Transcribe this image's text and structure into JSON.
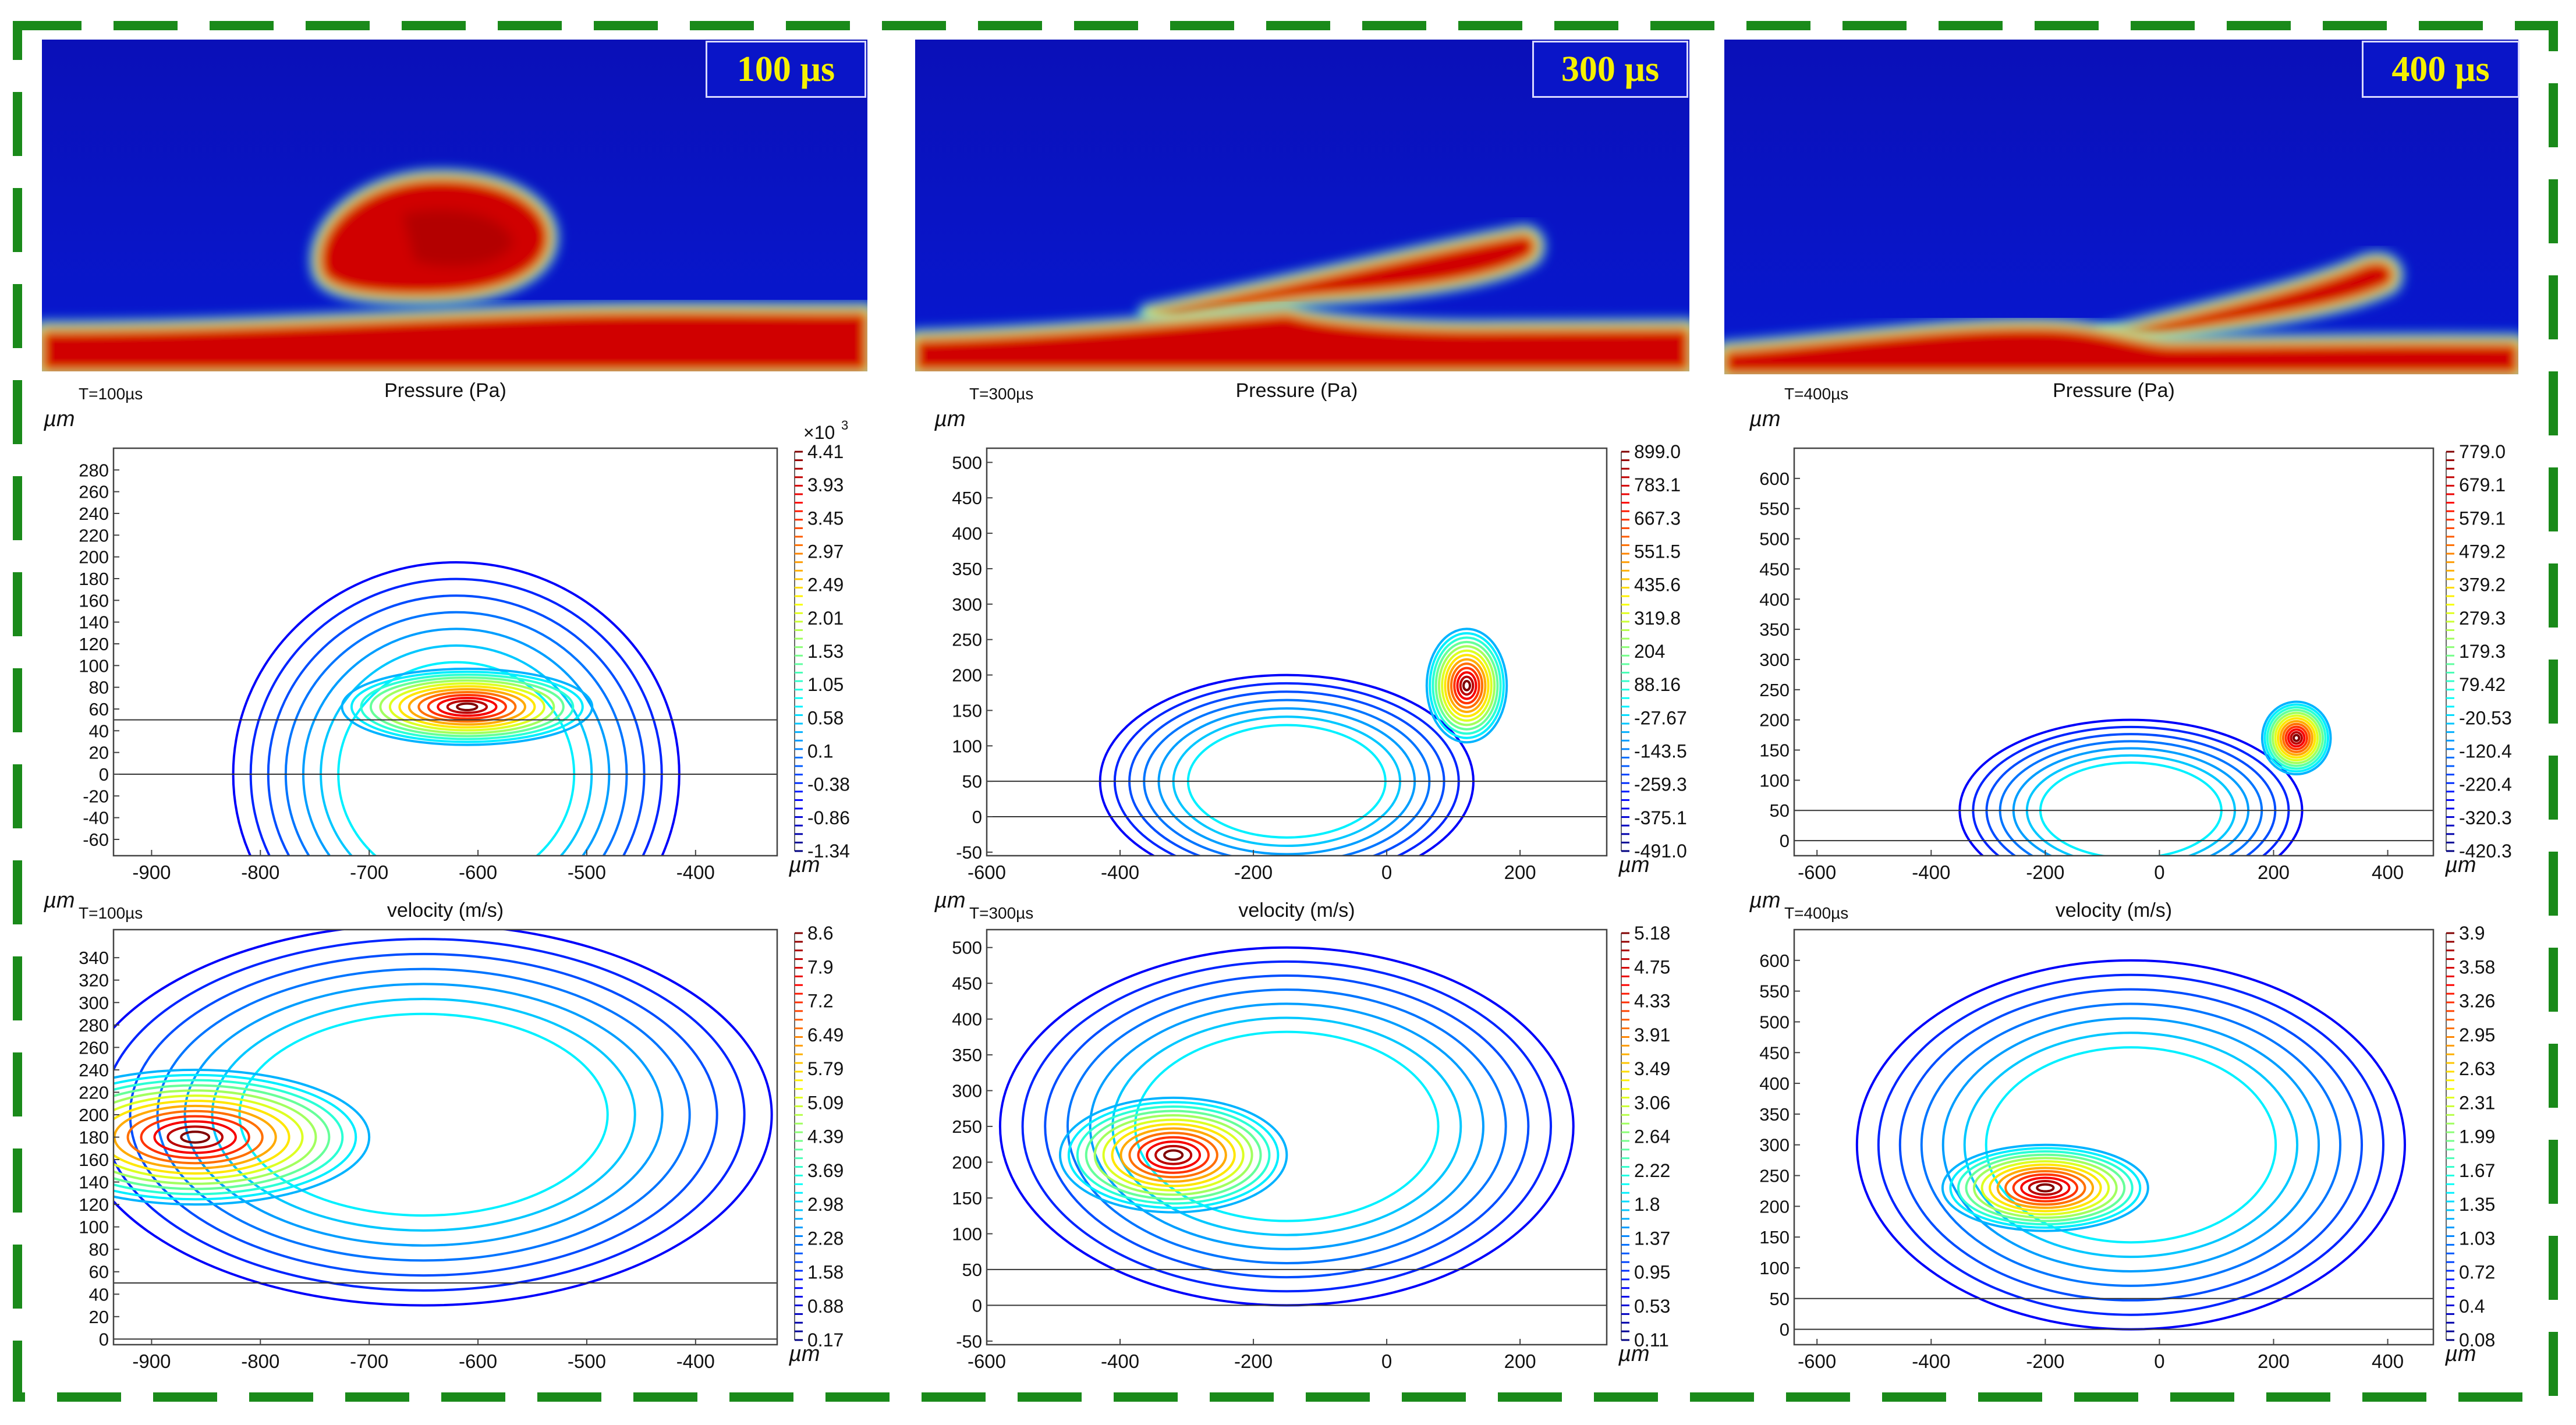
{
  "colors": {
    "frame": "#1a8a1a",
    "field_bg": "#0a14c0",
    "field_hot": "#c80000"
  },
  "snapshots": [
    {
      "label": "100 µs"
    },
    {
      "label": "300 µs"
    },
    {
      "label": "400 µs"
    }
  ],
  "chart_data": [
    {
      "type": "contour",
      "kind": "pressure",
      "col": 0,
      "time_label": "T=100µs",
      "title": "Pressure (Pa)",
      "unit": "µm",
      "xticks": [
        -900,
        -800,
        -700,
        -600,
        -500,
        -400
      ],
      "xlim": [
        -935,
        -325
      ],
      "yticks": [
        -60,
        -40,
        -20,
        0,
        20,
        40,
        60,
        80,
        100,
        120,
        140,
        160,
        180,
        200,
        220,
        240,
        260,
        280
      ],
      "ylim": [
        -75,
        300
      ],
      "colorbar": {
        "exponent": "×10",
        "exponent_power": "3",
        "labels": [
          "4.41",
          "3.93",
          "3.45",
          "2.97",
          "2.49",
          "2.01",
          "1.53",
          "1.05",
          "0.58",
          "0.1",
          "-0.38",
          "-0.86",
          "-1.34"
        ]
      },
      "contours": {
        "center": [
          -610,
          62
        ],
        "spread": [
          115,
          35
        ],
        "dome": [
          -620,
          0,
          205,
          195
        ],
        "level": 50
      }
    },
    {
      "type": "contour",
      "kind": "pressure",
      "col": 1,
      "time_label": "T=300µs",
      "title": "Pressure (Pa)",
      "unit": "µm",
      "xticks": [
        -600,
        -400,
        -200,
        0,
        200
      ],
      "xlim": [
        -600,
        330
      ],
      "yticks": [
        -50,
        0,
        50,
        100,
        150,
        200,
        250,
        300,
        350,
        400,
        450,
        500
      ],
      "ylim": [
        -55,
        520
      ],
      "colorbar": {
        "exponent": "",
        "exponent_power": "",
        "labels": [
          "899.0",
          "783.1",
          "667.3",
          "551.5",
          "435.6",
          "319.8",
          "204",
          "88.16",
          "-27.67",
          "-143.5",
          "-259.3",
          "-375.1",
          "-491.0"
        ]
      },
      "contours": {
        "center": [
          120,
          185
        ],
        "spread": [
          60,
          80
        ],
        "dome": [
          -150,
          50,
          280,
          150
        ],
        "level": 50
      }
    },
    {
      "type": "contour",
      "kind": "pressure",
      "col": 2,
      "time_label": "T=400µs",
      "title": "Pressure (Pa)",
      "unit": "µm",
      "xticks": [
        -600,
        -400,
        -200,
        0,
        200,
        400
      ],
      "xlim": [
        -640,
        480
      ],
      "yticks": [
        0,
        50,
        100,
        150,
        200,
        250,
        300,
        350,
        400,
        450,
        500,
        550,
        600
      ],
      "ylim": [
        -25,
        650
      ],
      "colorbar": {
        "exponent": "",
        "exponent_power": "",
        "labels": [
          "779.0",
          "679.1",
          "579.1",
          "479.2",
          "379.2",
          "279.3",
          "179.3",
          "79.42",
          "-20.53",
          "-120.4",
          "-220.4",
          "-320.3",
          "-420.3"
        ]
      },
      "contours": {
        "center": [
          240,
          170
        ],
        "spread": [
          60,
          60
        ],
        "dome": [
          -50,
          50,
          300,
          150
        ],
        "level": 50
      }
    },
    {
      "type": "contour",
      "kind": "velocity",
      "col": 0,
      "time_label": "T=100µs",
      "title": "velocity (m/s)",
      "unit": "µm",
      "xticks": [
        -900,
        -800,
        -700,
        -600,
        -500,
        -400
      ],
      "xlim": [
        -935,
        -325
      ],
      "yticks": [
        0,
        20,
        40,
        60,
        80,
        100,
        120,
        140,
        160,
        180,
        200,
        220,
        240,
        260,
        280,
        300,
        320,
        340
      ],
      "ylim": [
        -5,
        365
      ],
      "colorbar": {
        "exponent": "",
        "exponent_power": "",
        "labels": [
          "8.6",
          "7.9",
          "7.2",
          "6.49",
          "5.79",
          "5.09",
          "4.39",
          "3.69",
          "2.98",
          "2.28",
          "1.58",
          "0.88",
          "0.17"
        ]
      },
      "contours": {
        "center": [
          -860,
          180
        ],
        "spread": [
          160,
          60
        ],
        "dome": [
          -650,
          200,
          320,
          170
        ],
        "level": 50
      }
    },
    {
      "type": "contour",
      "kind": "velocity",
      "col": 1,
      "time_label": "T=300µs",
      "title": "velocity (m/s)",
      "unit": "µm",
      "xticks": [
        -600,
        -400,
        -200,
        0,
        200
      ],
      "xlim": [
        -600,
        330
      ],
      "yticks": [
        -50,
        0,
        50,
        100,
        150,
        200,
        250,
        300,
        350,
        400,
        450,
        500
      ],
      "ylim": [
        -55,
        525
      ],
      "colorbar": {
        "exponent": "",
        "exponent_power": "",
        "labels": [
          "5.18",
          "4.75",
          "4.33",
          "3.91",
          "3.49",
          "3.06",
          "2.64",
          "2.22",
          "1.8",
          "1.37",
          "0.95",
          "0.53",
          "0.11"
        ]
      },
      "contours": {
        "center": [
          -320,
          210
        ],
        "spread": [
          170,
          80
        ],
        "dome": [
          -150,
          250,
          430,
          250
        ],
        "level": 50
      }
    },
    {
      "type": "contour",
      "kind": "velocity",
      "col": 2,
      "time_label": "T=400µs",
      "title": "velocity (m/s)",
      "unit": "µm",
      "xticks": [
        -600,
        -400,
        -200,
        0,
        200,
        400
      ],
      "xlim": [
        -640,
        480
      ],
      "yticks": [
        0,
        50,
        100,
        150,
        200,
        250,
        300,
        350,
        400,
        450,
        500,
        550,
        600
      ],
      "ylim": [
        -25,
        650
      ],
      "colorbar": {
        "exponent": "",
        "exponent_power": "",
        "labels": [
          "3.9",
          "3.58",
          "3.26",
          "2.95",
          "2.63",
          "2.31",
          "1.99",
          "1.67",
          "1.35",
          "1.03",
          "0.72",
          "0.4",
          "0.08"
        ]
      },
      "contours": {
        "center": [
          -200,
          230
        ],
        "spread": [
          180,
          70
        ],
        "dome": [
          -50,
          300,
          480,
          300
        ],
        "level": 50
      }
    }
  ]
}
